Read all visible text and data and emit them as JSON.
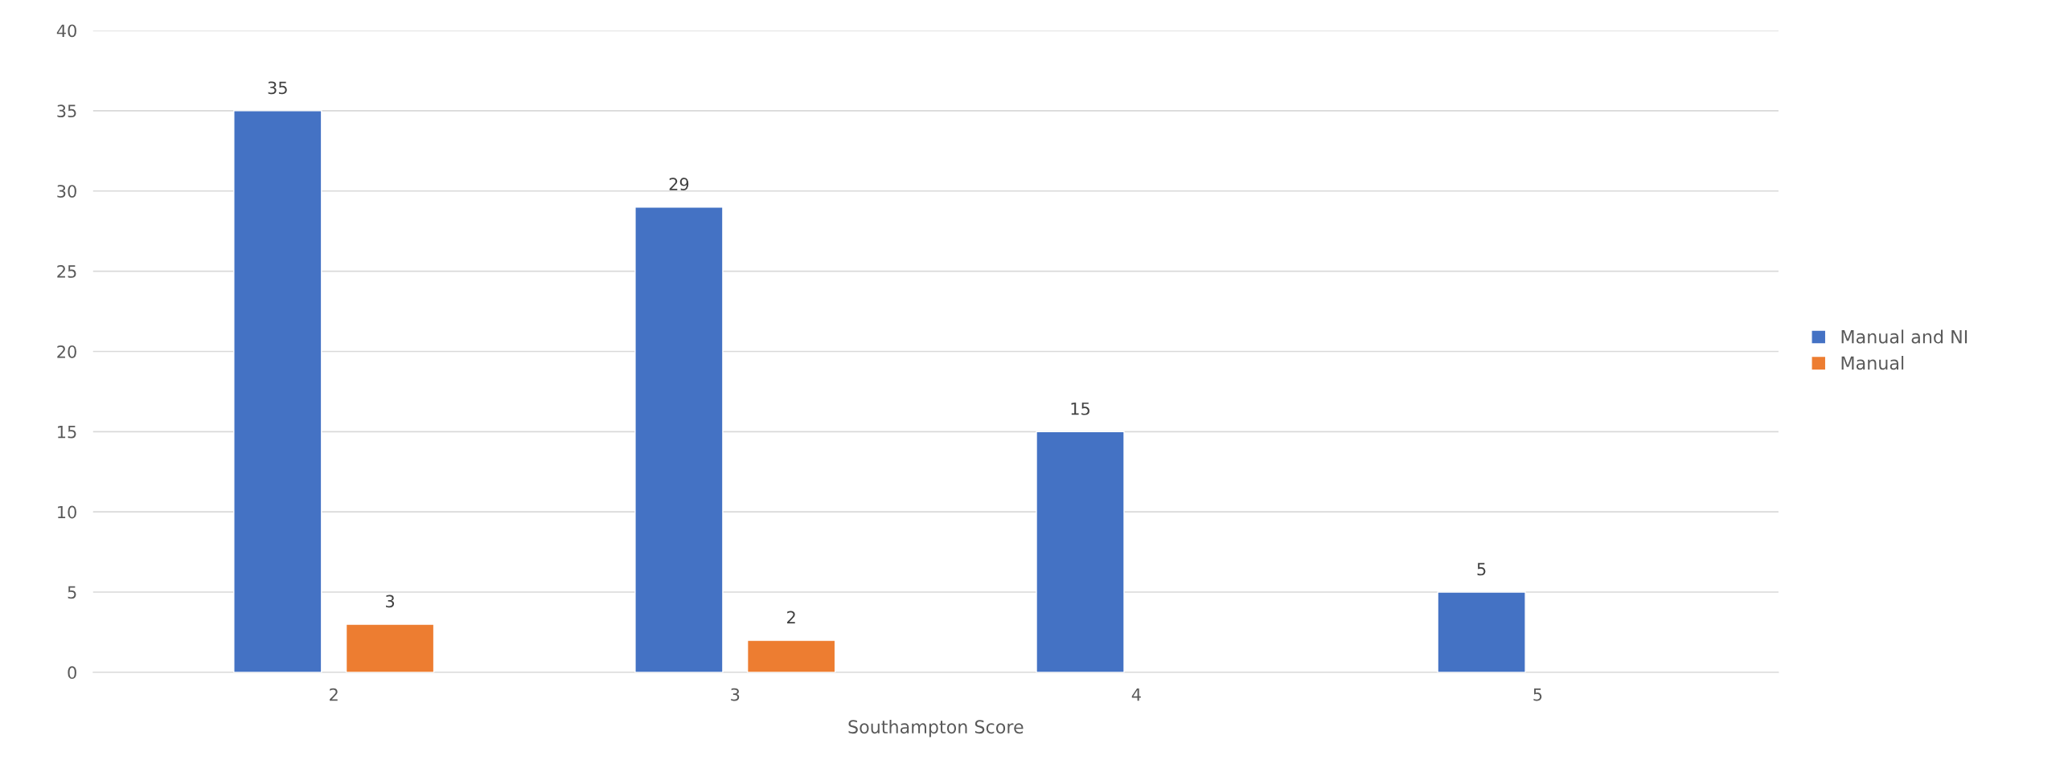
{
  "chart_data": {
    "type": "bar",
    "xlabel": "Southampton Score",
    "categories": [
      "2",
      "3",
      "4",
      "5"
    ],
    "series": [
      {
        "name": "Manual and NI",
        "color": "#4472c4",
        "values": [
          35,
          29,
          15,
          5
        ]
      },
      {
        "name": "Manual",
        "color": "#ed7d31",
        "values": [
          3,
          2,
          null,
          null
        ]
      }
    ],
    "ylim": [
      0,
      40
    ],
    "yticks": [
      0,
      5,
      10,
      15,
      20,
      25,
      30,
      35,
      40
    ],
    "grid": "y",
    "legend": "right",
    "data_labels": true
  }
}
